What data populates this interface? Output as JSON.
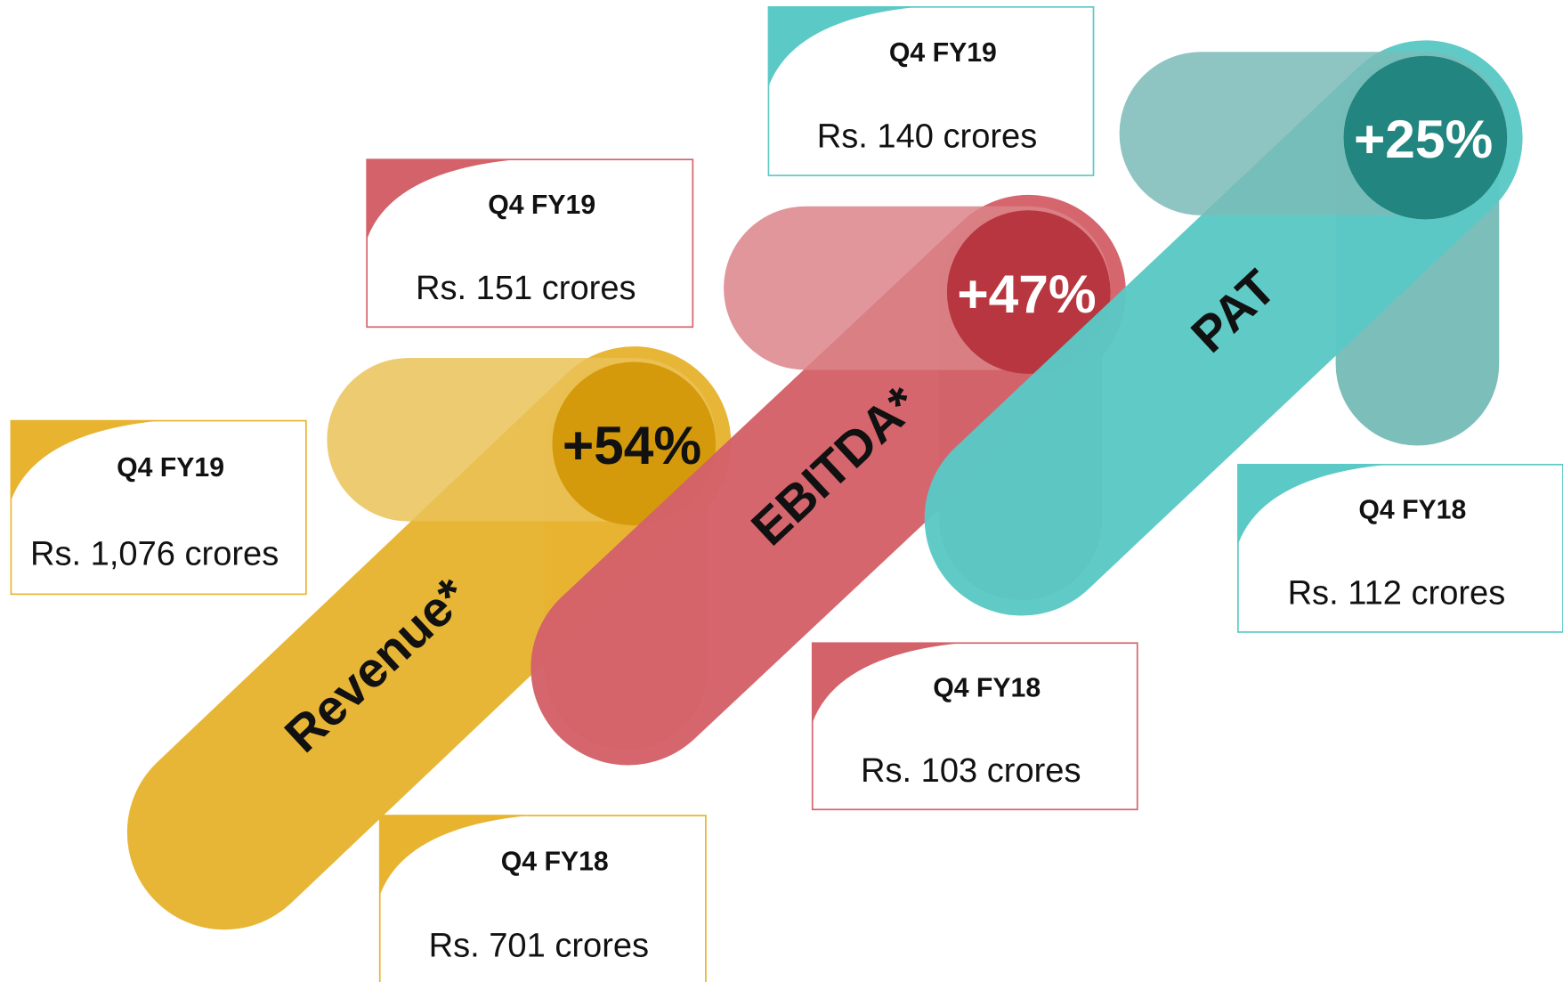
{
  "metrics": [
    {
      "name": "Revenue*",
      "growth": "+54%",
      "current": {
        "period": "Q4 FY19",
        "value": "Rs. 1,076 crores"
      },
      "previous": {
        "period": "Q4 FY18",
        "value": "Rs. 701 crores"
      }
    },
    {
      "name": "EBITDA*",
      "growth": "+47%",
      "current": {
        "period": "Q4 FY19",
        "value": "Rs. 151 crores"
      },
      "previous": {
        "period": "Q4 FY18",
        "value": "Rs. 103 crores"
      }
    },
    {
      "name": "PAT",
      "growth": "+25%",
      "current": {
        "period": "Q4 FY19",
        "value": "Rs. 140 crores"
      },
      "previous": {
        "period": "Q4 FY18",
        "value": "Rs. 112 crores"
      }
    }
  ]
}
